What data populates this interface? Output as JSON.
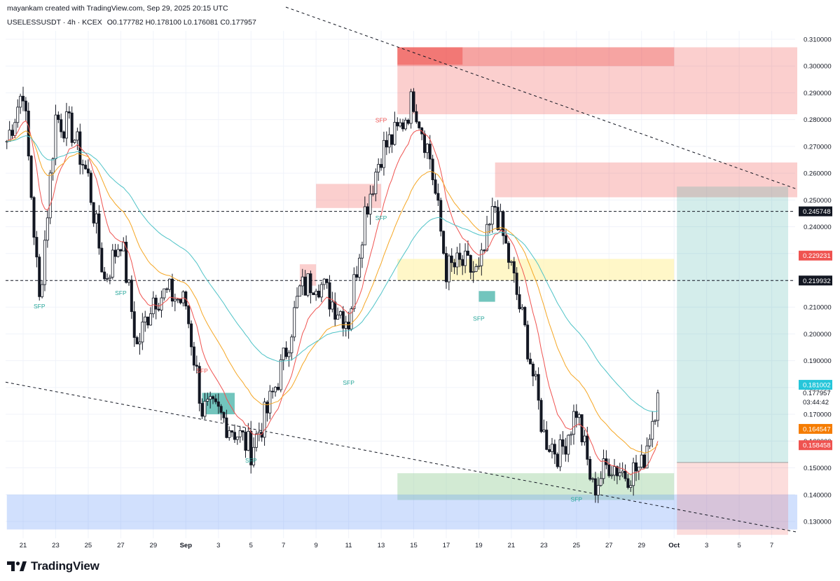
{
  "header": {
    "credit": "mayankam created with TradingView.com, Sep 29, 2025 20:15 UTC",
    "symbol": "USELESSUSDT · 4h · KCEX",
    "ohlc": "O0.177782 H0.178100 L0.176081 C0.177957"
  },
  "footer": {
    "brand": "TradingView"
  },
  "colors": {
    "up": "#26a69a",
    "down": "#131722",
    "ema_fast": "#ef5350",
    "ema_mid": "#f5a623",
    "ema_slow": "#4fc3c7",
    "supply": "#ef5350",
    "demand": "#26a69a",
    "blue_zone": "#5b8ff9"
  },
  "chart_data": {
    "type": "candlestick",
    "timeframe": "4h",
    "ylim": [
      0.125,
      0.313
    ],
    "x_tick_labels": [
      "21",
      "23",
      "25",
      "27",
      "29",
      "Sep",
      "3",
      "5",
      "7",
      "9",
      "11",
      "13",
      "15",
      "17",
      "19",
      "21",
      "23",
      "25",
      "27",
      "29",
      "Oct",
      "3",
      "5",
      "7"
    ],
    "y_tick_labels": [
      "0.310000",
      "0.300000",
      "0.290000",
      "0.280000",
      "0.270000",
      "0.260000",
      "0.250000",
      "0.240000",
      "0.230000",
      "0.220000",
      "0.210000",
      "0.200000",
      "0.190000",
      "0.180000",
      "0.170000",
      "0.160000",
      "0.150000",
      "0.140000",
      "0.130000"
    ],
    "price_levels": [
      {
        "label": "0.245748",
        "value": 0.245748,
        "style": "dashed"
      },
      {
        "label": "0.219932",
        "value": 0.219932,
        "style": "dashed"
      }
    ],
    "price_badges": [
      {
        "label": "0.229231",
        "value": 0.229231,
        "color": "#ef5350"
      },
      {
        "label": "0.181002",
        "value": 0.181002,
        "color": "#26c6da"
      },
      {
        "label": "0.177957",
        "value": 0.177957,
        "color": "none"
      },
      {
        "label": "03:44:42",
        "value": 0.175,
        "color": "none"
      },
      {
        "label": "0.164547",
        "value": 0.164547,
        "color": "#f57c00"
      },
      {
        "label": "0.158458",
        "value": 0.158458,
        "color": "#ef5350"
      }
    ],
    "annotations": [
      {
        "text": "SFP",
        "date": "Aug 22",
        "price": 0.2095,
        "color": "#26a69a"
      },
      {
        "text": "SFP",
        "date": "Aug 27",
        "price": 0.2145,
        "color": "#26a69a"
      },
      {
        "text": "SFP",
        "date": "Sep 1",
        "price": 0.1855,
        "color": "#ef5350"
      },
      {
        "text": "SFP",
        "date": "Sep 4",
        "price": 0.152,
        "color": "#26a69a"
      },
      {
        "text": "SFP",
        "date": "Sep 12",
        "price": 0.279,
        "color": "#ef5350"
      },
      {
        "text": "SFP",
        "date": "Sep 10",
        "price": 0.181,
        "color": "#26a69a"
      },
      {
        "text": "SFP",
        "date": "Sep 12",
        "price": 0.2425,
        "color": "#26a69a"
      },
      {
        "text": "SFP",
        "date": "Sep 18",
        "price": 0.205,
        "color": "#26a69a"
      },
      {
        "text": "SFP",
        "date": "Sep 24",
        "price": 0.1375,
        "color": "#26a69a"
      }
    ],
    "close_path": [
      {
        "date": "Aug 20",
        "close": 0.272
      },
      {
        "date": "Aug 21",
        "close": 0.292
      },
      {
        "date": "Aug 22",
        "close": 0.212
      },
      {
        "date": "Aug 23",
        "close": 0.281
      },
      {
        "date": "Aug 24",
        "close": 0.276
      },
      {
        "date": "Aug 25",
        "close": 0.258
      },
      {
        "date": "Aug 26",
        "close": 0.22
      },
      {
        "date": "Aug 27",
        "close": 0.236
      },
      {
        "date": "Aug 28",
        "close": 0.195
      },
      {
        "date": "Aug 29",
        "close": 0.214
      },
      {
        "date": "Aug 30",
        "close": 0.215
      },
      {
        "date": "Aug 31",
        "close": 0.211
      },
      {
        "date": "Sep 1",
        "close": 0.172
      },
      {
        "date": "Sep 2",
        "close": 0.17
      },
      {
        "date": "Sep 3",
        "close": 0.164
      },
      {
        "date": "Sep 4",
        "close": 0.157
      },
      {
        "date": "Sep 5",
        "close": 0.171
      },
      {
        "date": "Sep 6",
        "close": 0.19
      },
      {
        "date": "Sep 7",
        "close": 0.216
      },
      {
        "date": "Sep 8",
        "close": 0.221
      },
      {
        "date": "Sep 9",
        "close": 0.212
      },
      {
        "date": "Sep 10",
        "close": 0.205
      },
      {
        "date": "Sep 11",
        "close": 0.246
      },
      {
        "date": "Sep 12",
        "close": 0.268
      },
      {
        "date": "Sep 13",
        "close": 0.275
      },
      {
        "date": "Sep 14",
        "close": 0.288
      },
      {
        "date": "Sep 15",
        "close": 0.266
      },
      {
        "date": "Sep 16",
        "close": 0.224
      },
      {
        "date": "Sep 17",
        "close": 0.226
      },
      {
        "date": "Sep 18",
        "close": 0.222
      },
      {
        "date": "Sep 19",
        "close": 0.248
      },
      {
        "date": "Sep 20",
        "close": 0.224
      },
      {
        "date": "Sep 21",
        "close": 0.196
      },
      {
        "date": "Sep 22",
        "close": 0.162
      },
      {
        "date": "Sep 23",
        "close": 0.155
      },
      {
        "date": "Sep 24",
        "close": 0.172
      },
      {
        "date": "Sep 25",
        "close": 0.142
      },
      {
        "date": "Sep 26",
        "close": 0.152
      },
      {
        "date": "Sep 27",
        "close": 0.148
      },
      {
        "date": "Sep 28",
        "close": 0.15
      },
      {
        "date": "Sep 29",
        "close": 0.178
      }
    ],
    "zones": [
      {
        "kind": "supply",
        "from": "Sep 13",
        "to": "Oct 7",
        "low": 0.282,
        "high": 0.307
      },
      {
        "kind": "supply",
        "from": "Sep 19",
        "to": "Oct 7",
        "low": 0.251,
        "high": 0.264
      },
      {
        "kind": "supply",
        "from": "Sep 8",
        "to": "Sep 12",
        "low": 0.247,
        "high": 0.256
      },
      {
        "kind": "supply",
        "from": "Sep 7",
        "to": "Sep 8",
        "low": 0.218,
        "high": 0.226
      },
      {
        "kind": "neutral",
        "from": "Sep 13",
        "to": "Sep 30",
        "low": 0.22,
        "high": 0.228
      },
      {
        "kind": "demand",
        "from": "Sep 1",
        "to": "Sep 3",
        "low": 0.17,
        "high": 0.178
      },
      {
        "kind": "demand",
        "from": "Sep 18",
        "to": "Sep 19",
        "low": 0.212,
        "high": 0.216
      },
      {
        "kind": "demand",
        "from": "Sep 13",
        "to": "Sep 30",
        "low": 0.138,
        "high": 0.148
      },
      {
        "kind": "blue",
        "from": "Aug 20",
        "to": "Oct 7",
        "low": 0.127,
        "high": 0.14
      }
    ],
    "position": {
      "entry": 0.152,
      "target": 0.255,
      "stop": 0.125,
      "from": "Sep 30",
      "to": "Oct 7"
    },
    "trendlines": [
      {
        "from": {
          "date": "Sep 5",
          "price": 0.322
        },
        "to": {
          "date": "Oct 7",
          "price": 0.254
        }
      },
      {
        "from": {
          "date": "Aug 20",
          "price": 0.182
        },
        "to": {
          "date": "Oct 7",
          "price": 0.126
        }
      }
    ]
  }
}
